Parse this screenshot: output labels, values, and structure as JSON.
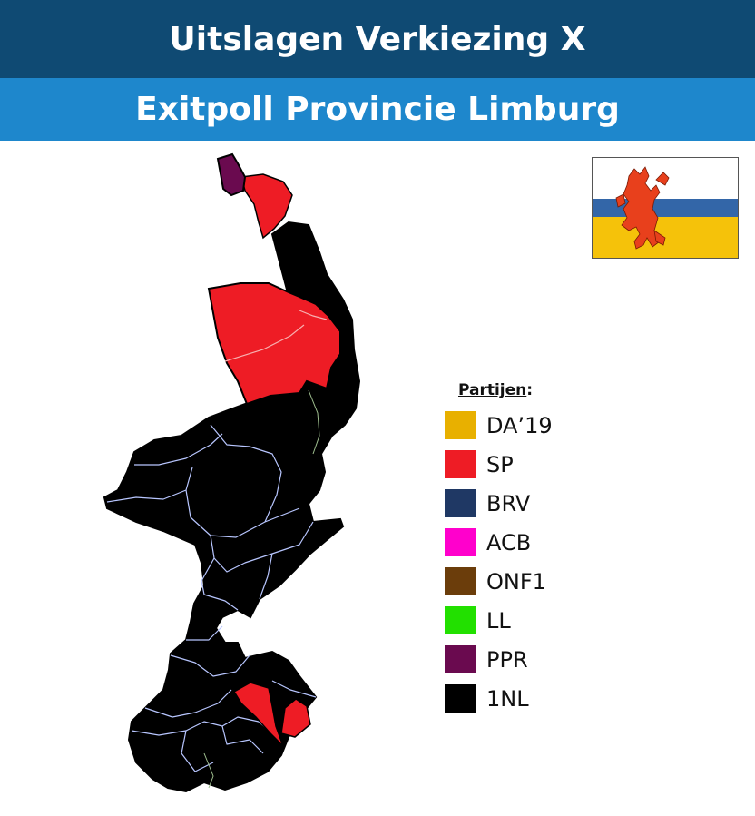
{
  "header": {
    "title": "Uitslagen Verkiezing X",
    "subtitle": "Exitpoll Provincie Limburg"
  },
  "legend": {
    "title": "Partijen",
    "title_suffix": ":",
    "items": [
      {
        "label": "DA’19",
        "color": "#e8b000"
      },
      {
        "label": "SP",
        "color": "#ee1c25"
      },
      {
        "label": "BRV",
        "color": "#1f3864"
      },
      {
        "label": "ACB",
        "color": "#ff00cc"
      },
      {
        "label": "ONF1",
        "color": "#6b3d0b"
      },
      {
        "label": "LL",
        "color": "#22e000"
      },
      {
        "label": "PPR",
        "color": "#6a0a4f"
      },
      {
        "label": "1NL",
        "color": "#000000"
      }
    ]
  },
  "map": {
    "province": "Limburg",
    "border_color": "#b8c6ff",
    "region_colors": {
      "SP": "#ee1c25",
      "PPR": "#6a0a4f",
      "1NL": "#000000"
    }
  },
  "flag": {
    "colors": {
      "top": "#ffffff",
      "middle": "#3366a8",
      "bottom": "#f5c20a",
      "lion": "#e8401c"
    }
  }
}
